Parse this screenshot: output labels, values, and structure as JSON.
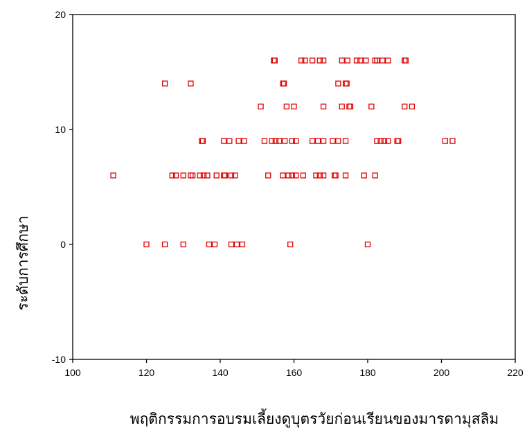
{
  "chart_data": {
    "type": "scatter",
    "title": "",
    "xlabel": "พฤติกรรมการอบรมเลี้ยงดูบุตรวัยก่อนเรียนของมารดามุสลิม",
    "ylabel": "ระดับการศึกษา",
    "xlim": [
      100,
      220
    ],
    "ylim": [
      -10,
      20
    ],
    "xticks": [
      "100",
      "120",
      "140",
      "160",
      "180",
      "200",
      "220"
    ],
    "yticks": [
      "20",
      "10",
      "0",
      "-10"
    ],
    "marker_color": "#e00000",
    "marker": "hollow-square",
    "grid": false,
    "points": [
      {
        "x": 125,
        "y": 14
      },
      {
        "x": 132,
        "y": 14
      },
      {
        "x": 157,
        "y": 14
      },
      {
        "x": 157.3,
        "y": 14
      },
      {
        "x": 172,
        "y": 14
      },
      {
        "x": 174,
        "y": 14
      },
      {
        "x": 174.3,
        "y": 14
      },
      {
        "x": 154.5,
        "y": 16
      },
      {
        "x": 154.8,
        "y": 16
      },
      {
        "x": 162,
        "y": 16
      },
      {
        "x": 163,
        "y": 16
      },
      {
        "x": 165,
        "y": 16
      },
      {
        "x": 167,
        "y": 16
      },
      {
        "x": 168,
        "y": 16
      },
      {
        "x": 173,
        "y": 16
      },
      {
        "x": 174.5,
        "y": 16
      },
      {
        "x": 177,
        "y": 16
      },
      {
        "x": 178,
        "y": 16
      },
      {
        "x": 179.5,
        "y": 16
      },
      {
        "x": 182,
        "y": 16
      },
      {
        "x": 182.5,
        "y": 16
      },
      {
        "x": 184,
        "y": 16
      },
      {
        "x": 185.5,
        "y": 16
      },
      {
        "x": 190,
        "y": 16
      },
      {
        "x": 190.3,
        "y": 16
      },
      {
        "x": 151,
        "y": 12
      },
      {
        "x": 158,
        "y": 12
      },
      {
        "x": 160,
        "y": 12
      },
      {
        "x": 168,
        "y": 12
      },
      {
        "x": 173,
        "y": 12
      },
      {
        "x": 175,
        "y": 12
      },
      {
        "x": 175.3,
        "y": 12
      },
      {
        "x": 181,
        "y": 12
      },
      {
        "x": 190,
        "y": 12
      },
      {
        "x": 192,
        "y": 12
      },
      {
        "x": 135,
        "y": 9
      },
      {
        "x": 135.3,
        "y": 9
      },
      {
        "x": 141,
        "y": 9
      },
      {
        "x": 142.5,
        "y": 9
      },
      {
        "x": 145,
        "y": 9
      },
      {
        "x": 146.5,
        "y": 9
      },
      {
        "x": 152,
        "y": 9
      },
      {
        "x": 154,
        "y": 9
      },
      {
        "x": 155,
        "y": 9
      },
      {
        "x": 156,
        "y": 9
      },
      {
        "x": 157.5,
        "y": 9
      },
      {
        "x": 159.5,
        "y": 9
      },
      {
        "x": 160.5,
        "y": 9
      },
      {
        "x": 165,
        "y": 9
      },
      {
        "x": 166.5,
        "y": 9
      },
      {
        "x": 168,
        "y": 9
      },
      {
        "x": 170.5,
        "y": 9
      },
      {
        "x": 172,
        "y": 9
      },
      {
        "x": 174,
        "y": 9
      },
      {
        "x": 182.5,
        "y": 9
      },
      {
        "x": 183.5,
        "y": 9
      },
      {
        "x": 184.5,
        "y": 9
      },
      {
        "x": 185.5,
        "y": 9
      },
      {
        "x": 188,
        "y": 9
      },
      {
        "x": 188.3,
        "y": 9
      },
      {
        "x": 201,
        "y": 9
      },
      {
        "x": 203,
        "y": 9
      },
      {
        "x": 111,
        "y": 6
      },
      {
        "x": 127,
        "y": 6
      },
      {
        "x": 128,
        "y": 6
      },
      {
        "x": 130,
        "y": 6
      },
      {
        "x": 132,
        "y": 6
      },
      {
        "x": 132.5,
        "y": 6
      },
      {
        "x": 134.5,
        "y": 6
      },
      {
        "x": 135.5,
        "y": 6
      },
      {
        "x": 136.5,
        "y": 6
      },
      {
        "x": 139,
        "y": 6
      },
      {
        "x": 141,
        "y": 6
      },
      {
        "x": 141.3,
        "y": 6
      },
      {
        "x": 143,
        "y": 6
      },
      {
        "x": 144,
        "y": 6
      },
      {
        "x": 153,
        "y": 6
      },
      {
        "x": 157,
        "y": 6
      },
      {
        "x": 158.5,
        "y": 6
      },
      {
        "x": 159.5,
        "y": 6
      },
      {
        "x": 160.5,
        "y": 6
      },
      {
        "x": 162.5,
        "y": 6
      },
      {
        "x": 166,
        "y": 6
      },
      {
        "x": 167,
        "y": 6
      },
      {
        "x": 168,
        "y": 6
      },
      {
        "x": 171,
        "y": 6
      },
      {
        "x": 171.3,
        "y": 6
      },
      {
        "x": 174,
        "y": 6
      },
      {
        "x": 179,
        "y": 6
      },
      {
        "x": 182,
        "y": 6
      },
      {
        "x": 120,
        "y": 0
      },
      {
        "x": 125,
        "y": 0
      },
      {
        "x": 130,
        "y": 0
      },
      {
        "x": 137,
        "y": 0
      },
      {
        "x": 138.5,
        "y": 0
      },
      {
        "x": 143,
        "y": 0
      },
      {
        "x": 144.5,
        "y": 0
      },
      {
        "x": 146,
        "y": 0
      },
      {
        "x": 159,
        "y": 0
      },
      {
        "x": 180,
        "y": 0
      }
    ]
  }
}
